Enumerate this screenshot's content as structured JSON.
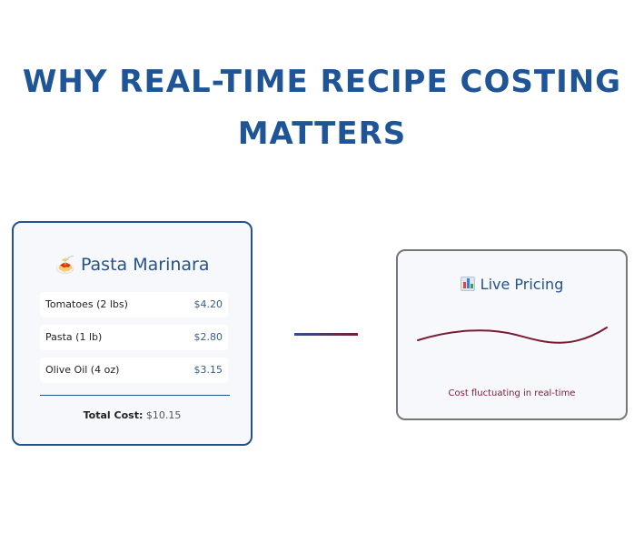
{
  "title": {
    "line1": "WHY REAL-TIME RECIPE COSTING",
    "line2": "MATTERS"
  },
  "recipe": {
    "emoji": "🍝",
    "name": "Pasta Marinara",
    "ingredients": [
      {
        "name": "Tomatoes (2 lbs)",
        "price": "$4.20"
      },
      {
        "name": "Pasta (1 lb)",
        "price": "$2.80"
      },
      {
        "name": "Olive Oil (4 oz)",
        "price": "$3.15"
      }
    ],
    "total_label": "Total Cost:",
    "total_value": "$10.15"
  },
  "pricing": {
    "icon": "bar-chart-icon",
    "title": "Live Pricing",
    "caption": "Cost fluctuating in real-time"
  },
  "colors": {
    "primary": "#24528d",
    "accent": "#7a1c32",
    "card_bg": "#f6f8fb"
  }
}
